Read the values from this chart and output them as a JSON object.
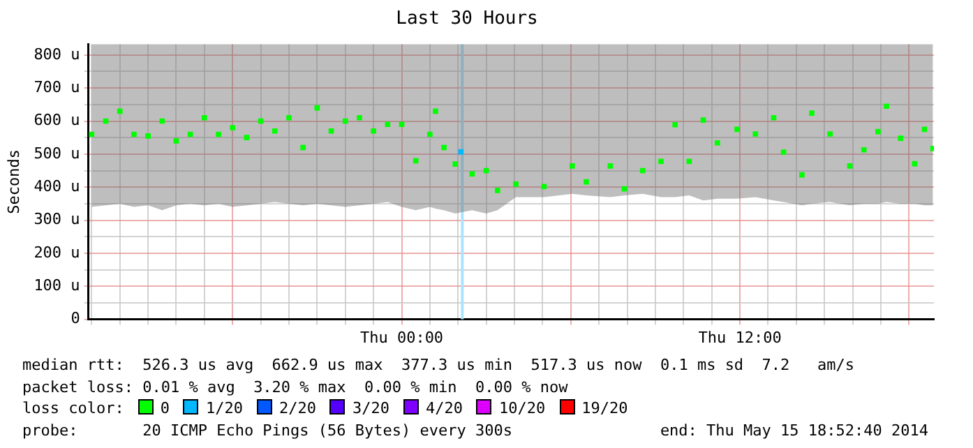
{
  "chart_data": {
    "type": "scatter",
    "title": "Last 30 Hours",
    "ylabel": "Seconds",
    "legend_title": "loss color:",
    "legend": "bottom",
    "marker": "square",
    "grid": true,
    "xlim": [
      "2014-05-14T12:53",
      "2014-05-15T18:53"
    ],
    "xticks": [
      {
        "value": "2014-05-14T13:00",
        "label": null
      },
      {
        "value": "2014-05-14T14:00",
        "label": null
      },
      {
        "value": "2014-05-14T15:00",
        "label": null
      },
      {
        "value": "2014-05-14T16:00",
        "label": null
      },
      {
        "value": "2014-05-14T17:00",
        "label": null
      },
      {
        "value": "2014-05-14T18:00",
        "label": null
      },
      {
        "value": "2014-05-14T19:00",
        "label": null
      },
      {
        "value": "2014-05-14T20:00",
        "label": null
      },
      {
        "value": "2014-05-14T21:00",
        "label": null
      },
      {
        "value": "2014-05-14T22:00",
        "label": null
      },
      {
        "value": "2014-05-14T23:00",
        "label": null
      },
      {
        "value": "2014-05-15T00:00",
        "label": "Thu 00:00"
      },
      {
        "value": "2014-05-15T01:00",
        "label": null
      },
      {
        "value": "2014-05-15T02:00",
        "label": null
      },
      {
        "value": "2014-05-15T03:00",
        "label": null
      },
      {
        "value": "2014-05-15T04:00",
        "label": null
      },
      {
        "value": "2014-05-15T05:00",
        "label": null
      },
      {
        "value": "2014-05-15T06:00",
        "label": null
      },
      {
        "value": "2014-05-15T07:00",
        "label": null
      },
      {
        "value": "2014-05-15T08:00",
        "label": null
      },
      {
        "value": "2014-05-15T09:00",
        "label": null
      },
      {
        "value": "2014-05-15T10:00",
        "label": null
      },
      {
        "value": "2014-05-15T11:00",
        "label": null
      },
      {
        "value": "2014-05-15T12:00",
        "label": "Thu 12:00"
      },
      {
        "value": "2014-05-15T13:00",
        "label": null
      },
      {
        "value": "2014-05-15T14:00",
        "label": null
      },
      {
        "value": "2014-05-15T15:00",
        "label": null
      },
      {
        "value": "2014-05-15T16:00",
        "label": null
      },
      {
        "value": "2014-05-15T17:00",
        "label": null
      },
      {
        "value": "2014-05-15T18:00",
        "label": null
      }
    ],
    "ylim": [
      0,
      833
    ],
    "yticks": [
      0,
      {
        "value": 50,
        "label": null
      },
      {
        "value": 100,
        "label": "100 u"
      },
      {
        "value": 150,
        "label": null
      },
      {
        "value": 200,
        "label": "200 u"
      },
      {
        "value": 250,
        "label": null
      },
      {
        "value": 300,
        "label": "300 u"
      },
      {
        "value": 350,
        "label": null
      },
      {
        "value": 400,
        "label": "400 u"
      },
      {
        "value": 450,
        "label": null
      },
      {
        "value": 500,
        "label": "500 u"
      },
      {
        "value": 550,
        "label": null
      },
      {
        "value": 600,
        "label": "600 u"
      },
      {
        "value": 650,
        "label": null
      },
      {
        "value": 700,
        "label": "700 u"
      },
      {
        "value": 750,
        "label": null
      },
      {
        "value": 800,
        "label": "800 u"
      }
    ],
    "series": [
      {
        "name": "0",
        "color": "#00ff00",
        "x": [
          "2014-05-14T13:00",
          "2014-05-14T13:30",
          "2014-05-14T14:00",
          "2014-05-14T14:30",
          "2014-05-14T15:00",
          "2014-05-14T15:30",
          "2014-05-14T16:00",
          "2014-05-14T16:30",
          "2014-05-14T17:00",
          "2014-05-14T17:30",
          "2014-05-14T18:00",
          "2014-05-14T18:30",
          "2014-05-14T19:00",
          "2014-05-14T19:30",
          "2014-05-14T20:00",
          "2014-05-14T20:30",
          "2014-05-14T21:00",
          "2014-05-14T21:30",
          "2014-05-14T22:00",
          "2014-05-14T22:30",
          "2014-05-14T23:00",
          "2014-05-14T23:30",
          "2014-05-15T00:00",
          "2014-05-15T00:30",
          "2014-05-15T01:00",
          "2014-05-15T01:12",
          "2014-05-15T01:30",
          "2014-05-15T01:54",
          "2014-05-15T02:30",
          "2014-05-15T03:00",
          "2014-05-15T03:24",
          "2014-05-15T04:03",
          "2014-05-15T05:03",
          "2014-05-15T06:03",
          "2014-05-15T06:33",
          "2014-05-15T07:24",
          "2014-05-15T07:54",
          "2014-05-15T08:33",
          "2014-05-15T09:12",
          "2014-05-15T09:42",
          "2014-05-15T10:12",
          "2014-05-15T10:42",
          "2014-05-15T11:12",
          "2014-05-15T11:54",
          "2014-05-15T12:33",
          "2014-05-15T13:12",
          "2014-05-15T13:33",
          "2014-05-15T14:12",
          "2014-05-15T14:33",
          "2014-05-15T15:12",
          "2014-05-15T15:54",
          "2014-05-15T16:24",
          "2014-05-15T16:54",
          "2014-05-15T17:12",
          "2014-05-15T17:42",
          "2014-05-15T18:12",
          "2014-05-15T18:33",
          "2014-05-15T18:51"
        ],
        "values": [
          560,
          600,
          630,
          560,
          555,
          600,
          540,
          560,
          610,
          560,
          580,
          550,
          600,
          570,
          610,
          520,
          640,
          570,
          600,
          610,
          570,
          590,
          590,
          480,
          560,
          630,
          520,
          470,
          440,
          450,
          390,
          409,
          402,
          464,
          416,
          464,
          395,
          450,
          478,
          589,
          478,
          603,
          534,
          575,
          561,
          610,
          506,
          437,
          624,
          561,
          464,
          513,
          568,
          645,
          548,
          471,
          575,
          517
        ],
        "lower": [
          340,
          345,
          350,
          340,
          345,
          330,
          345,
          350,
          345,
          350,
          340,
          345,
          350,
          355,
          350,
          345,
          350,
          345,
          340,
          345,
          350,
          355,
          340,
          330,
          340,
          335,
          330,
          320,
          330,
          320,
          330,
          370,
          370,
          380,
          375,
          370,
          375,
          380,
          370,
          370,
          375,
          360,
          365,
          365,
          370,
          360,
          355,
          345,
          350,
          355,
          345,
          350,
          350,
          355,
          350,
          350,
          345,
          345
        ],
        "upper": [
          833,
          833,
          833,
          833,
          833,
          833,
          833,
          833,
          833,
          833,
          833,
          833,
          833,
          833,
          833,
          833,
          833,
          833,
          833,
          833,
          833,
          833,
          833,
          833,
          833,
          833,
          833,
          833,
          833,
          833,
          833,
          833,
          833,
          833,
          833,
          833,
          833,
          833,
          833,
          833,
          833,
          833,
          833,
          833,
          833,
          833,
          833,
          833,
          833,
          833,
          833,
          833,
          833,
          833,
          833,
          833,
          833,
          833
        ]
      },
      {
        "name": "1/20",
        "color": "#00b8ff",
        "x": [
          "2014-05-15T02:06"
        ],
        "values": [
          507
        ]
      },
      {
        "name": "2/20",
        "color": "#0059ff"
      },
      {
        "name": "3/20",
        "color": "#5500ff"
      },
      {
        "name": "4/20",
        "color": "#7f00ff"
      },
      {
        "name": "10/20",
        "color": "#dd00ff"
      },
      {
        "name": "19/20",
        "color": "#ff0000"
      }
    ],
    "ref_lines": [
      {
        "axis": "x",
        "value": "2014-05-15T02:09",
        "label": null,
        "color": "#a8e4ff"
      }
    ],
    "annotations": [
      "median rtt:  526.3 us avg  662.9 us max  377.3 us min  517.3 us now  0.1 ms sd  7.2   am/s",
      "packet loss: 0.01 % avg  3.20 % max  0.00 % min  0.00 % now",
      "probe:       20 ICMP Echo Pings (56 Bytes) every 300s",
      "end: Thu May 15 18:52:40 2014"
    ]
  }
}
